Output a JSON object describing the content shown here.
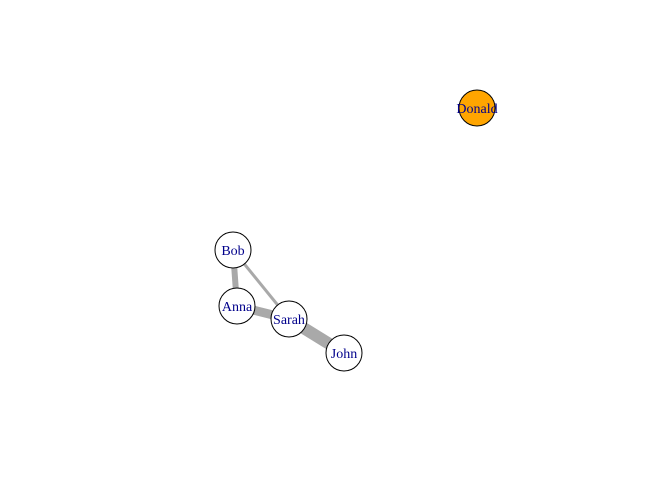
{
  "graph": {
    "nodes": [
      {
        "id": "donald",
        "label": "Donald",
        "fill": "#FFA500"
      },
      {
        "id": "bob",
        "label": "Bob",
        "fill": "#FFFFFF"
      },
      {
        "id": "anna",
        "label": "Anna",
        "fill": "#FFFFFF"
      },
      {
        "id": "sarah",
        "label": "Sarah",
        "fill": "#FFFFFF"
      },
      {
        "id": "john",
        "label": "John",
        "fill": "#FFFFFF"
      }
    ],
    "edges": [
      {
        "from": "bob",
        "to": "anna",
        "weight": 2
      },
      {
        "from": "bob",
        "to": "sarah",
        "weight": 1
      },
      {
        "from": "anna",
        "to": "sarah",
        "weight": 3
      },
      {
        "from": "sarah",
        "to": "john",
        "weight": 4
      }
    ],
    "colors": {
      "edge": "#A9A9A9",
      "node_border": "#000000",
      "label": "#00008B"
    }
  }
}
